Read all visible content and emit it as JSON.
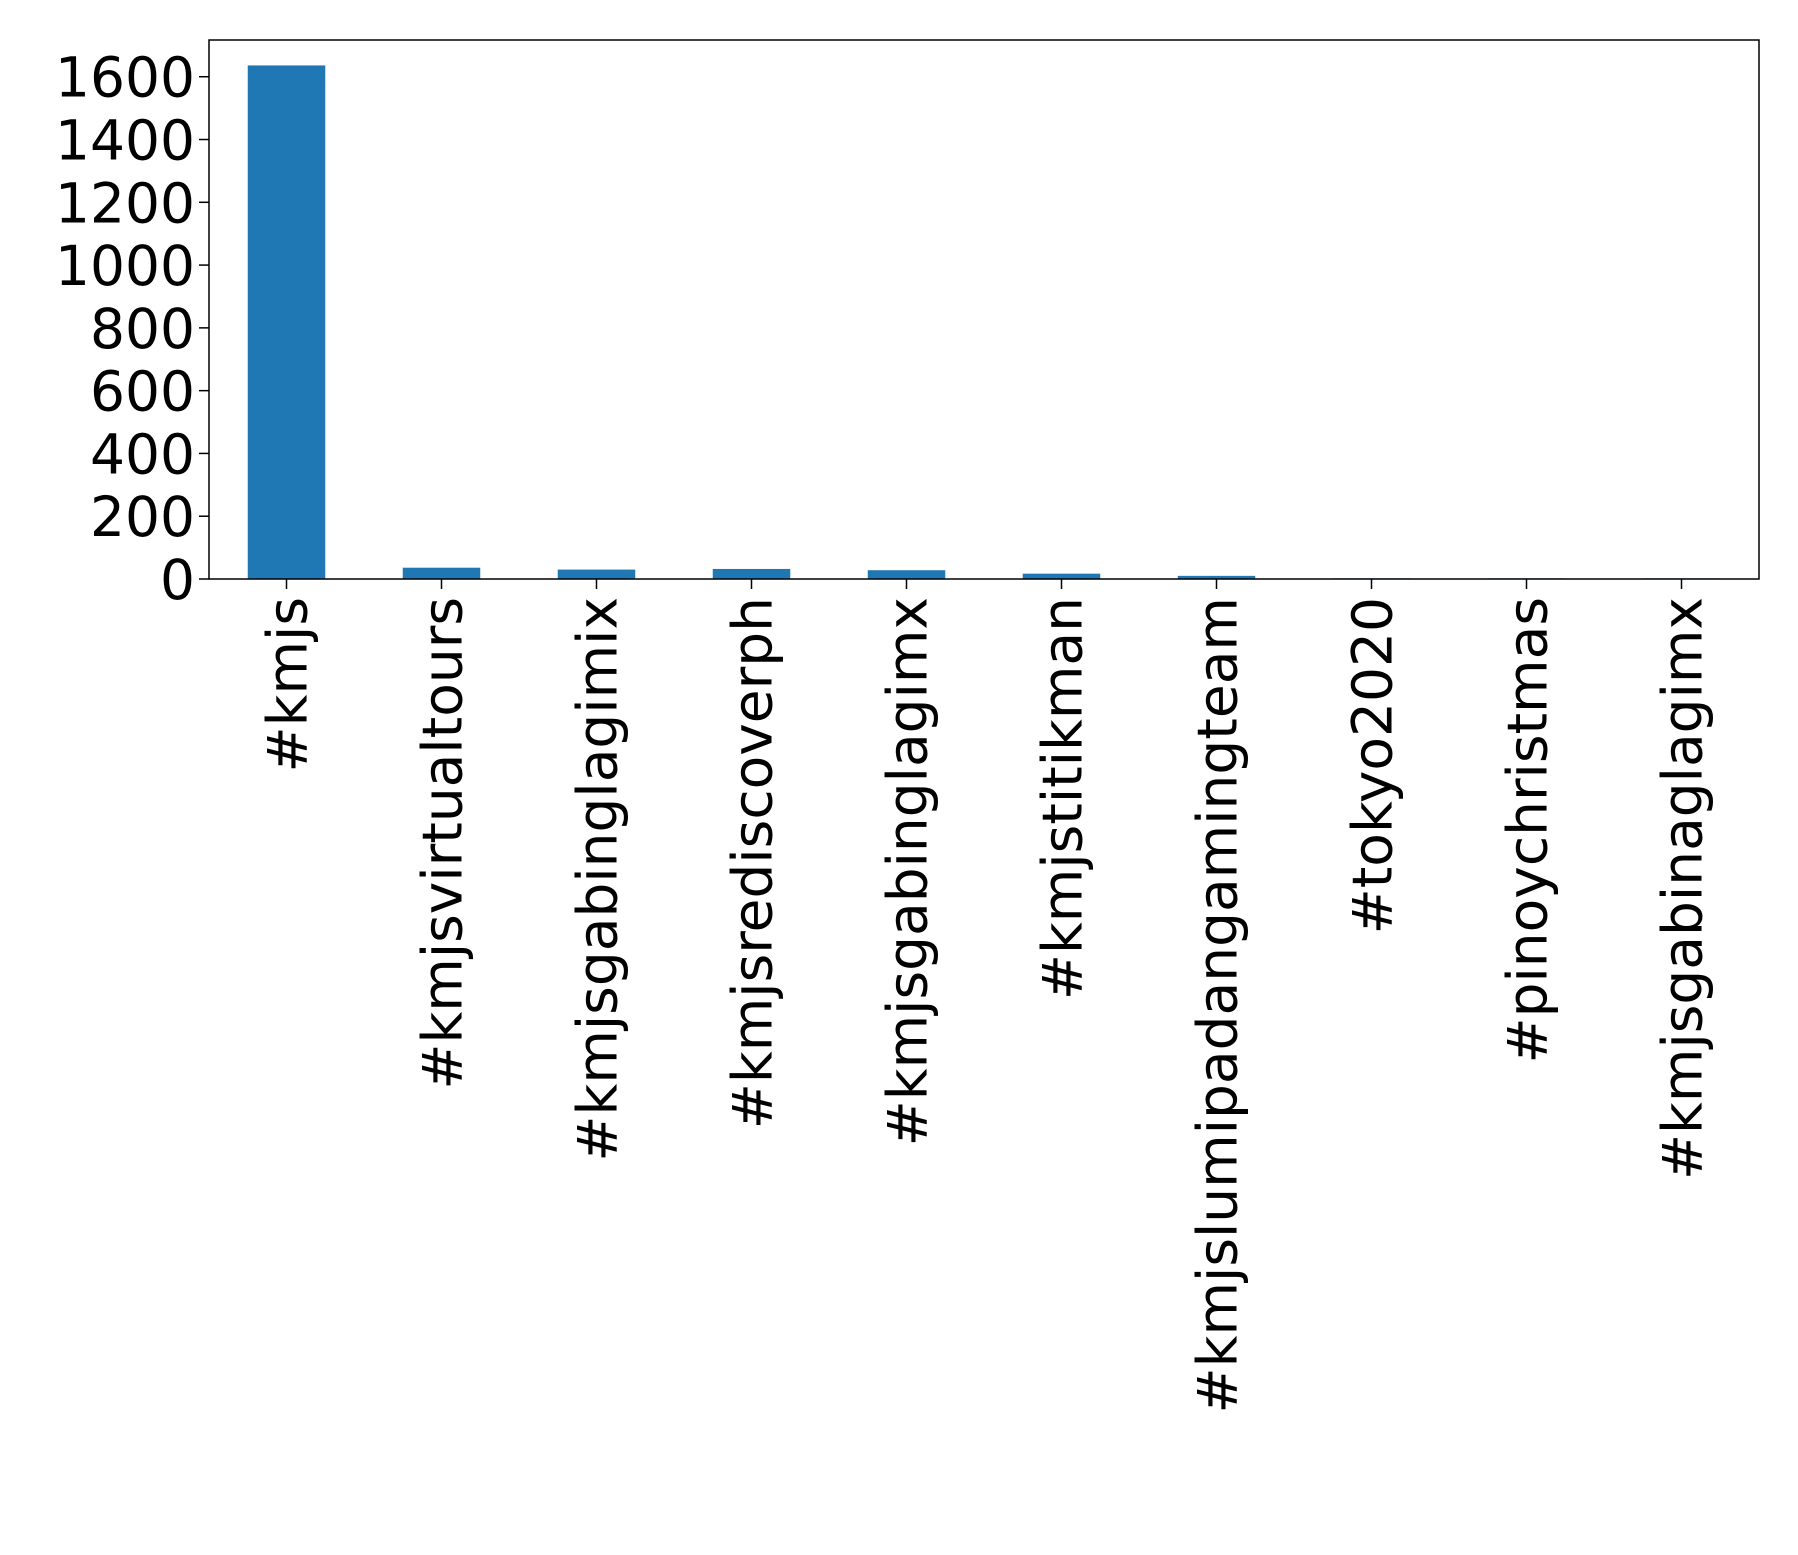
{
  "chart_data": {
    "type": "bar",
    "categories": [
      "#kmjs",
      "#kmjsvirtualtours",
      "#kmjsgabinglagimix",
      "#kmjsrediscoverph",
      "#kmjsgabinglagimx",
      "#kmjstitikman",
      "#kmjslumipadangamingteam",
      "#tokyo2020",
      "#pinoychristmas",
      "#kmjsgabinaglagimx"
    ],
    "values": [
      1636,
      36,
      30,
      32,
      28,
      17,
      10,
      2,
      2,
      2
    ],
    "color": "#1f77b4",
    "ylim": [
      0,
      1717
    ],
    "yticks": [
      0,
      200,
      400,
      600,
      800,
      1000,
      1200,
      1400,
      1600
    ],
    "grid": false
  }
}
